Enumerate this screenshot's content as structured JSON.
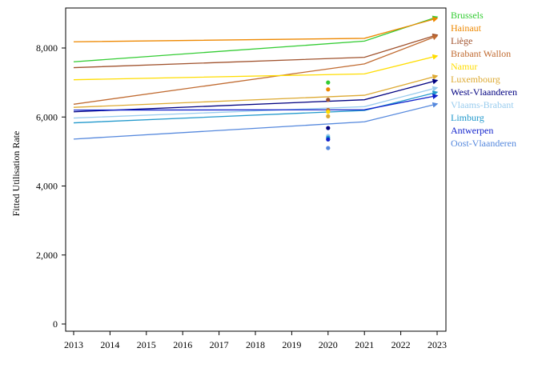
{
  "chart_data": {
    "type": "line",
    "title": "",
    "xlabel": "",
    "ylabel": "Fitted Utilisation Rate",
    "xlim": [
      2013,
      2023
    ],
    "ylim": [
      0,
      9000
    ],
    "x_ticks": [
      2013,
      2014,
      2015,
      2016,
      2017,
      2018,
      2019,
      2020,
      2021,
      2022,
      2023
    ],
    "y_ticks": [
      0,
      2000,
      4000,
      6000,
      8000
    ],
    "y_tick_labels": [
      "0",
      "2,000",
      "4,000",
      "6,000",
      "8,000"
    ],
    "grid": false,
    "legend_position": "right",
    "series": [
      {
        "name": "Brussels",
        "color": "#33cc33",
        "x": [
          2013,
          2021,
          2023
        ],
        "values": [
          7600,
          8200,
          8900
        ],
        "point_2020": 7000
      },
      {
        "name": "Hainaut",
        "color": "#ee8800",
        "x": [
          2013,
          2021,
          2023
        ],
        "values": [
          8180,
          8280,
          8860
        ],
        "point_2020": 6800
      },
      {
        "name": "Liège",
        "color": "#a0522d",
        "x": [
          2013,
          2021,
          2023
        ],
        "values": [
          7430,
          7730,
          8380
        ],
        "point_2020": 6500
      },
      {
        "name": "Brabant Wallon",
        "color": "#c06a30",
        "x": [
          2013,
          2021,
          2023
        ],
        "values": [
          6370,
          7540,
          8350
        ],
        "point_2020": 6200
      },
      {
        "name": "Namur",
        "color": "#ffdd00",
        "x": [
          2013,
          2021,
          2023
        ],
        "values": [
          7080,
          7250,
          7770
        ],
        "point_2020": 6150
      },
      {
        "name": "Luxembourg",
        "color": "#ddaa33",
        "x": [
          2013,
          2021,
          2023
        ],
        "values": [
          6280,
          6630,
          7190
        ],
        "point_2020": 6020
      },
      {
        "name": "West-Vlaanderen",
        "color": "#000080",
        "x": [
          2013,
          2021,
          2023
        ],
        "values": [
          6150,
          6500,
          7060
        ],
        "point_2020": 5680
      },
      {
        "name": "Vlaams-Brabant",
        "color": "#99ccee",
        "x": [
          2013,
          2021,
          2023
        ],
        "values": [
          5970,
          6300,
          6850
        ],
        "point_2020": 5450
      },
      {
        "name": "Limburg",
        "color": "#2299cc",
        "x": [
          2013,
          2021,
          2023
        ],
        "values": [
          5830,
          6190,
          6720
        ],
        "point_2020": 5400
      },
      {
        "name": "Antwerpen",
        "color": "#1122cc",
        "x": [
          2013,
          2021,
          2023
        ],
        "values": [
          6200,
          6210,
          6620
        ],
        "point_2020": 5350
      },
      {
        "name": "Oost-Vlaanderen",
        "color": "#5588dd",
        "x": [
          2013,
          2021,
          2023
        ],
        "values": [
          5360,
          5860,
          6380
        ],
        "point_2020": 5100
      }
    ]
  }
}
